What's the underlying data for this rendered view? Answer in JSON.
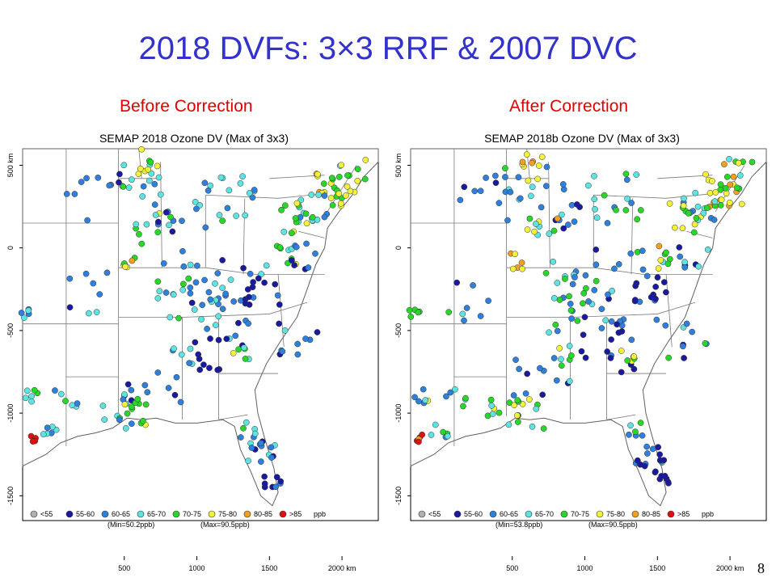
{
  "slide": {
    "title": "2018 DVFs: 3×3 RRF & 2007 DVC",
    "page_number": "8"
  },
  "legend_categories": [
    {
      "label": "<55",
      "color": "#b0b0b0"
    },
    {
      "label": "55-60",
      "color": "#1a1a9e"
    },
    {
      "label": "60-65",
      "color": "#2f7fdc"
    },
    {
      "label": "65-70",
      "color": "#5ee3e3"
    },
    {
      "label": "70-75",
      "color": "#28d828"
    },
    {
      "label": "75-80",
      "color": "#f2f23a"
    },
    {
      "label": "80-85",
      "color": "#f2a020"
    },
    {
      "label": ">85",
      "color": "#e01010"
    }
  ],
  "legend_unit": "ppb",
  "axes": {
    "x_ticks": [
      "500",
      "1000",
      "1500",
      "2000 km"
    ],
    "y_ticks": [
      "500 km",
      "0",
      "-500",
      "-1000",
      "-1500"
    ]
  },
  "panels": [
    {
      "label": "Before Correction",
      "map_title": "SEMAP 2018 Ozone DV (Max of 3x3)",
      "min_text": "(Min=50.2ppb)",
      "max_text": "(Max=90.5ppb)"
    },
    {
      "label": "After Correction",
      "map_title": "SEMAP 2018b Ozone DV (Max of 3x3)",
      "min_text": "(Min=53.8ppb)",
      "max_text": "(Max=90.5ppb)"
    }
  ]
}
